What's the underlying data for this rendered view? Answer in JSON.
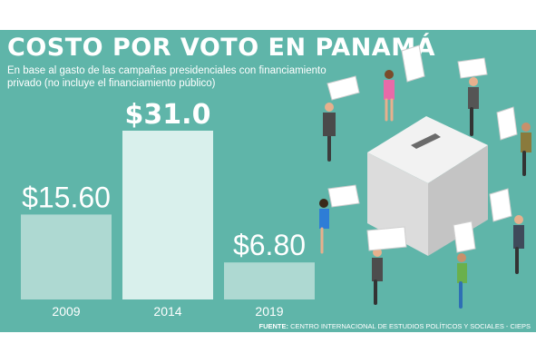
{
  "title": "COSTO POR VOTO EN PANAMÁ",
  "subtitle": "En base al gasto de las campañas presidenciales con financiamiento privado (no incluye el financiamiento público)",
  "source_label": "FUENTE:",
  "source_text": "CENTRO INTERNACIONAL DE ESTUDIOS POLÍTICOS Y SOCIALES - CIEPS",
  "colors": {
    "background": "#5fb5a9",
    "bar": "#aed9d2",
    "bar_highlight": "#d9f0ec",
    "text": "#ffffff"
  },
  "chart_data": {
    "type": "bar",
    "categories": [
      "2009",
      "2014",
      "2019"
    ],
    "values": [
      15.6,
      31.0,
      6.8
    ],
    "value_labels": [
      "$15.60",
      "$31.0",
      "$6.80"
    ],
    "highlight_index": 1,
    "ylim": [
      0,
      31.0
    ],
    "grid": false
  },
  "illustration": "ballot-box-with-voters"
}
